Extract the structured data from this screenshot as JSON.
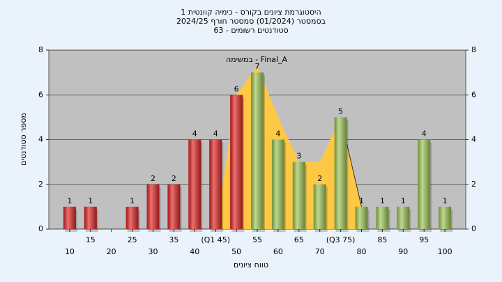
{
  "chart_data": {
    "type": "bar",
    "title": [
      "היסטוגרמת ציונים בקורס - כימיה קוונטית 1",
      "בסמסטר (01/2024)  סמסטר חורף 2024/25",
      "סטודנטים רשומים - 63"
    ],
    "annotation": "במשימה - Final_A",
    "x_label": "טווח ציונים",
    "y_label": "מספר סטודנטים",
    "x": [
      10,
      15,
      20,
      25,
      30,
      35,
      40,
      45,
      50,
      55,
      60,
      65,
      70,
      75,
      80,
      85,
      90,
      95,
      100
    ],
    "values": [
      1,
      1,
      0,
      1,
      2,
      2,
      4,
      4,
      6,
      7,
      4,
      3,
      2,
      5,
      1,
      1,
      1,
      4,
      1
    ],
    "colors": [
      "#e02424",
      "#e02424",
      "#e02424",
      "#e02424",
      "#e02424",
      "#e02424",
      "#e02424",
      "#e02424",
      "#e02424",
      "#9cc454",
      "#9cc454",
      "#9cc454",
      "#9cc454",
      "#9cc454",
      "#9cc454",
      "#9cc454",
      "#9cc454",
      "#9cc454",
      "#9cc454"
    ],
    "area": {
      "color": "#ffc844",
      "values": [
        null,
        null,
        null,
        null,
        null,
        null,
        null,
        0,
        6,
        7.3,
        5,
        3,
        3,
        5,
        1,
        null,
        null,
        null,
        null
      ]
    },
    "xlim": [
      5,
      105
    ],
    "xticks": [
      10,
      15,
      20,
      25,
      30,
      35,
      40,
      {
        "value": 45,
        "label": "(Q1 45)"
      },
      50,
      55,
      60,
      65,
      70,
      {
        "value": 75,
        "label": "(Q3 75)"
      },
      80,
      85,
      90,
      95,
      100
    ],
    "ylim": [
      0,
      8
    ],
    "yticks": [
      0,
      2,
      4,
      6,
      8
    ],
    "y2lim": [
      0,
      8
    ],
    "y2ticks": [
      0,
      2,
      4,
      6,
      8
    ],
    "grid": true
  }
}
